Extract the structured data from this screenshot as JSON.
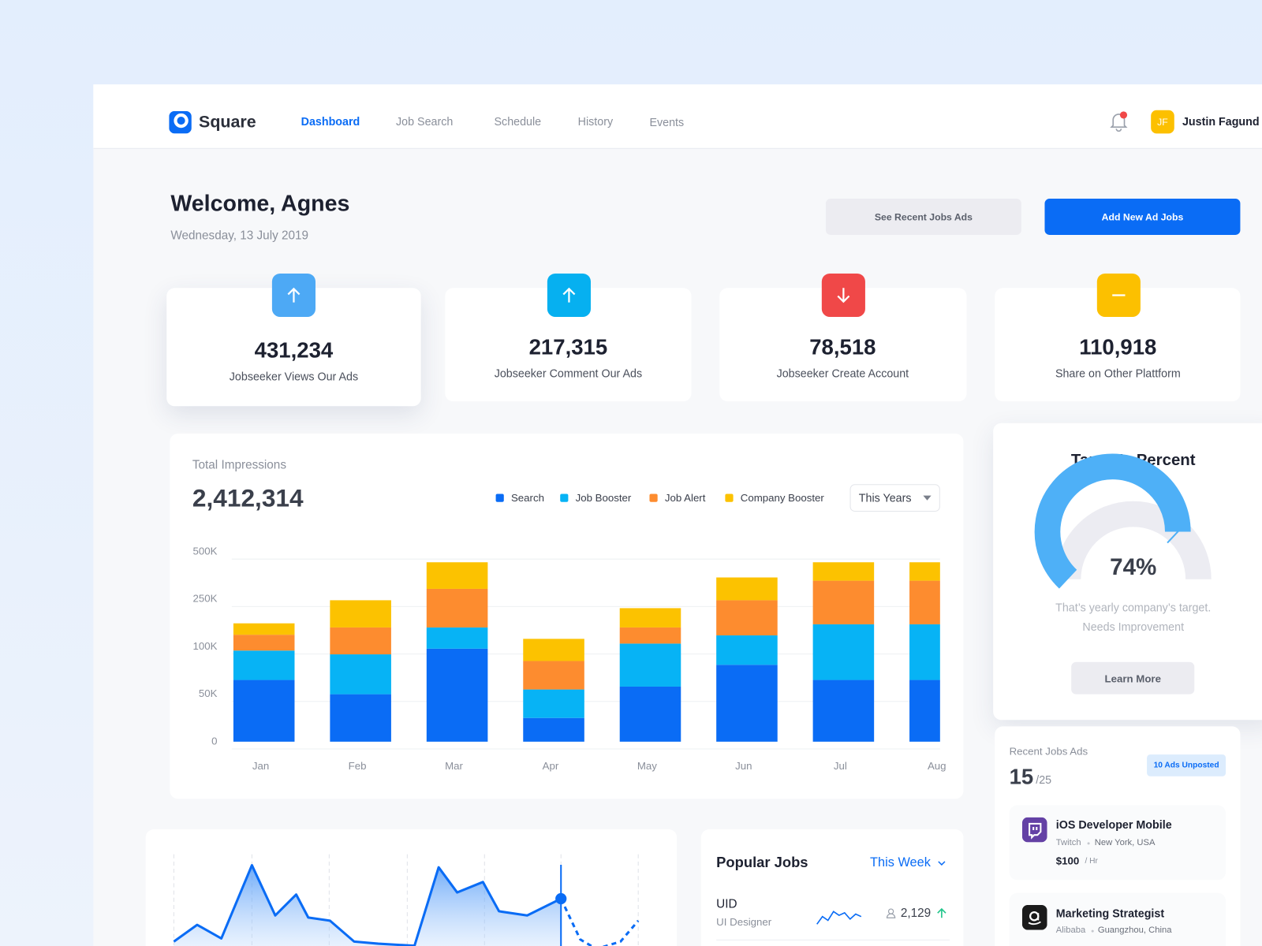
{
  "header": {
    "brand": "Square",
    "nav": [
      "Dashboard",
      "Job Search",
      "Schedule",
      "History",
      "Events"
    ],
    "user_initials": "JF",
    "user_name": "Justin Fagund"
  },
  "welcome": {
    "title": "Welcome, Agnes",
    "date": "Wednesday, 13 July 2019",
    "buttons": [
      "See Recent Jobs Ads",
      "Add New Ad Jobs"
    ]
  },
  "stats": [
    {
      "value": "431,234",
      "label": "Jobseeker Views Our Ads"
    },
    {
      "value": "217,315",
      "label": "Jobseeker Comment Our Ads"
    },
    {
      "value": "78,518",
      "label": "Jobseeker Create Account"
    },
    {
      "value": "110,918",
      "label": "Share on Other Plattform"
    }
  ],
  "impressions": {
    "title": "Total Impressions",
    "total": "2,412,314",
    "filter": "This Years"
  },
  "target": {
    "title": "Target’s Percent",
    "text": [
      "That’s yearly company’s target.",
      "Needs Improvement"
    ],
    "button": "Learn More"
  },
  "recent_jobs": {
    "title": "Recent Jobs Ads",
    "count": "15",
    "total": "/25",
    "badge": "10 Ads Unposted",
    "items": [
      {
        "title": "iOS Developer Mobile",
        "company": "Twitch",
        "location": "New York, USA",
        "price": "$100",
        "unit": "/ Hr"
      },
      {
        "title": "Marketing Strategist",
        "company": "Alibaba",
        "location": "Guangzhou, China"
      }
    ]
  },
  "popular_jobs": {
    "title": "Popular Jobs",
    "filter": "This Week",
    "rows": [
      {
        "code": "UID",
        "role": "UI Designer",
        "count": "2,129"
      }
    ]
  },
  "chart_data": [
    {
      "type": "bar",
      "stacked": true,
      "categories": [
        "Jan",
        "Feb",
        "Mar",
        "Apr",
        "May",
        "Jun",
        "Jul",
        "Aug"
      ],
      "series": [
        {
          "name": "Search",
          "color": "#0a6cf5",
          "values": [
            65000,
            50000,
            98000,
            25000,
            58000,
            81000,
            65000,
            65000
          ]
        },
        {
          "name": "Job Booster",
          "color": "#07b3f5",
          "values": [
            31000,
            42000,
            63000,
            30000,
            52000,
            55000,
            106000,
            106000
          ]
        },
        {
          "name": "Job Alert",
          "color": "#fd8c2f",
          "values": [
            42000,
            69000,
            144000,
            30000,
            51000,
            111000,
            177000,
            177000
          ]
        },
        {
          "name": "Company Booster",
          "color": "#fcc200",
          "values": [
            36000,
            86000,
            140000,
            40000,
            61000,
            118000,
            97000,
            97000
          ]
        }
      ],
      "ylim": [
        0,
        500000
      ],
      "yticks": [
        0,
        {
          "value": 50000,
          "label": "50K"
        },
        {
          "value": 100000,
          "label": "100K"
        },
        {
          "value": 250000,
          "label": "250K"
        },
        {
          "value": 500000,
          "label": "500K"
        }
      ],
      "grid": true
    },
    {
      "type": "gauge",
      "values": [
        74
      ],
      "value_labels": [
        "74%"
      ],
      "ylim": [
        0,
        100
      ],
      "color": "#4eb0f7"
    },
    {
      "type": "area",
      "x": [
        0,
        29,
        59,
        97,
        126,
        152,
        167,
        194,
        224,
        254,
        299,
        329,
        352,
        384,
        404,
        439,
        481,
        505,
        525,
        555,
        577
      ],
      "series": [
        {
          "color": "#0a6cf5",
          "values": [
            15,
            31,
            18,
            88,
            40,
            60,
            38,
            35,
            15,
            13,
            11,
            86,
            62,
            72,
            44,
            40,
            56,
            null,
            null,
            null,
            null
          ]
        },
        {
          "color": "#0a6cf5",
          "line_style": "dashed",
          "values": [
            null,
            null,
            null,
            null,
            null,
            null,
            null,
            null,
            null,
            null,
            null,
            null,
            null,
            null,
            null,
            null,
            56,
            17,
            8,
            15,
            35
          ]
        }
      ],
      "xlim": [
        0,
        577
      ],
      "ylim": [
        0,
        100
      ],
      "xticks": [
        0,
        97,
        193,
        290,
        386,
        481,
        577
      ]
    },
    {
      "type": "line",
      "color": "#0a6cf5",
      "values": [
        2,
        8,
        5,
        12,
        9,
        11,
        6,
        10,
        8
      ],
      "ylim": [
        0,
        14
      ]
    }
  ]
}
